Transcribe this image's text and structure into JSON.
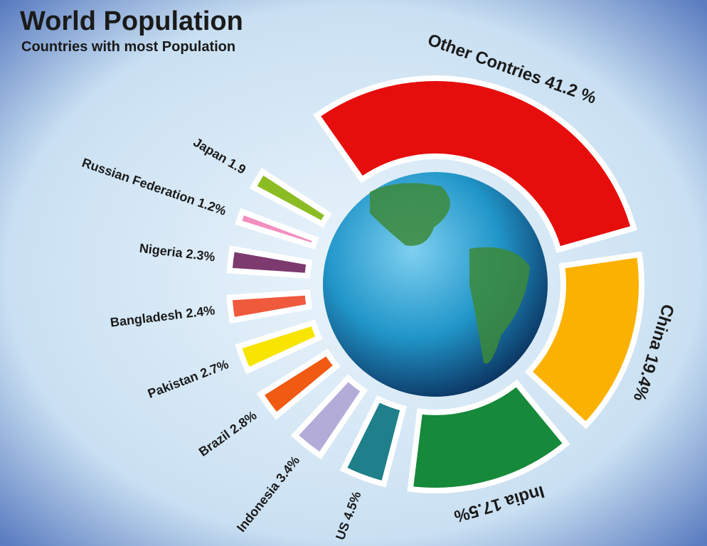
{
  "chart_data": {
    "type": "pie",
    "title": "World Population",
    "subtitle": "Countries with most Population",
    "categories": [
      "Other Contries",
      "China",
      "India",
      "US",
      "Indonesia",
      "Brazil",
      "Pakistan",
      "Bangladesh",
      "Nigeria",
      "Russian Federation",
      "Japan"
    ],
    "values": [
      41.2,
      19.4,
      17.5,
      4.5,
      3.4,
      2.8,
      2.7,
      2.4,
      2.3,
      1.2,
      1.9
    ],
    "value_labels": [
      "41.2 %",
      "19.4%",
      "17.5%",
      "4.5%",
      "3.4%",
      "2.8%",
      "2.7%",
      "2.4%",
      "2.3%",
      "1.2%",
      "1.9"
    ],
    "colors": [
      "#e60d0d",
      "#fbb100",
      "#16893a",
      "#1f7f8a",
      "#b3acd9",
      "#f05a12",
      "#f7e500",
      "#ef5a3c",
      "#7c3a6f",
      "#f28fbf",
      "#8cbc23"
    ]
  }
}
